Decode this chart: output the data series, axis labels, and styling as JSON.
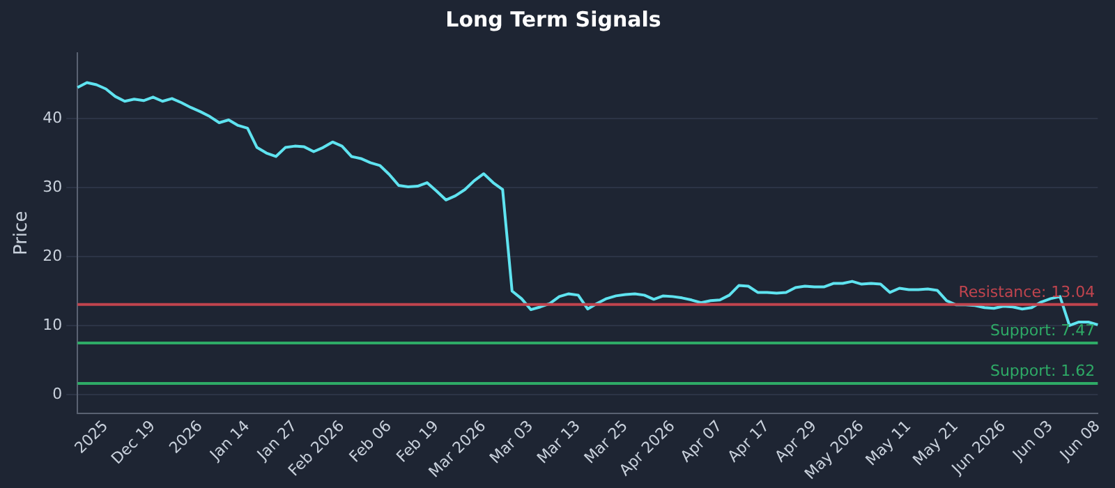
{
  "chart_data": {
    "type": "line",
    "title": "Long Term Signals",
    "ylabel": "Price",
    "categories": [
      null,
      null,
      null,
      "2025",
      null,
      null,
      null,
      null,
      "Dec 19",
      null,
      null,
      null,
      null,
      "2026",
      null,
      null,
      null,
      null,
      "Jan 14",
      null,
      null,
      null,
      null,
      "Jan 27",
      null,
      null,
      null,
      null,
      "Feb 2026",
      null,
      null,
      null,
      null,
      "Feb 06",
      null,
      null,
      null,
      null,
      "Feb 19",
      null,
      null,
      null,
      null,
      "Mar 2026",
      null,
      null,
      null,
      null,
      "Mar 03",
      null,
      null,
      null,
      null,
      "Mar 13",
      null,
      null,
      null,
      null,
      "Mar 25",
      null,
      null,
      null,
      null,
      "Apr 2026",
      null,
      null,
      null,
      null,
      "Apr 07",
      null,
      null,
      null,
      null,
      "Apr 17",
      null,
      null,
      null,
      null,
      "Apr 29",
      null,
      null,
      null,
      null,
      "May 2026",
      null,
      null,
      null,
      null,
      "May 11",
      null,
      null,
      null,
      null,
      "May 21",
      null,
      null,
      null,
      null,
      "Jun 2026",
      null,
      null,
      null,
      null,
      "Jun 03",
      null,
      null,
      null,
      null,
      "Jun 08"
    ],
    "series": [
      {
        "color": "#5fe3f0",
        "values": [
          44.5,
          45.2,
          44.9,
          44.3,
          43.2,
          42.5,
          42.8,
          42.6,
          43.1,
          42.5,
          42.9,
          42.3,
          41.6,
          41.0,
          40.3,
          39.4,
          39.8,
          39.0,
          38.6,
          35.8,
          35.0,
          34.5,
          35.8,
          36.0,
          35.9,
          35.2,
          35.8,
          36.6,
          36.0,
          34.5,
          34.2,
          33.6,
          33.2,
          31.9,
          30.3,
          30.1,
          30.2,
          30.7,
          29.5,
          28.2,
          28.8,
          29.7,
          31.0,
          32.0,
          30.7,
          29.7,
          15.0,
          13.9,
          12.3,
          12.7,
          13.2,
          14.2,
          14.6,
          14.4,
          12.4,
          13.2,
          13.9,
          14.3,
          14.5,
          14.6,
          14.4,
          13.8,
          14.3,
          14.2,
          14.0,
          13.7,
          13.3,
          13.6,
          13.7,
          14.4,
          15.8,
          15.7,
          14.8,
          14.8,
          14.7,
          14.8,
          15.5,
          15.7,
          15.6,
          15.6,
          16.1,
          16.1,
          16.4,
          16.0,
          16.1,
          16.0,
          14.8,
          15.4,
          15.2,
          15.2,
          15.3,
          15.1,
          13.6,
          13.0,
          13.0,
          12.9,
          12.6,
          12.5,
          12.8,
          12.7,
          12.4,
          12.6,
          13.4,
          13.9,
          14.2,
          10.0,
          10.5,
          10.5,
          10.1
        ]
      }
    ],
    "ylim": [
      -2.7,
      49.5
    ],
    "yticks": [
      0,
      10,
      20,
      30,
      40
    ],
    "grid": "y",
    "legend": false,
    "marker": "none",
    "line_style": "solid",
    "ref_lines": [
      {
        "axis": "y",
        "value": 13.04,
        "label": "Resistance: 13.04",
        "color": "#c0444e"
      },
      {
        "axis": "y",
        "value": 7.47,
        "label": "Support: 7.47",
        "color": "#2eaa66"
      },
      {
        "axis": "y",
        "value": 1.62,
        "label": "Support: 1.62",
        "color": "#2eaa66"
      }
    ]
  }
}
